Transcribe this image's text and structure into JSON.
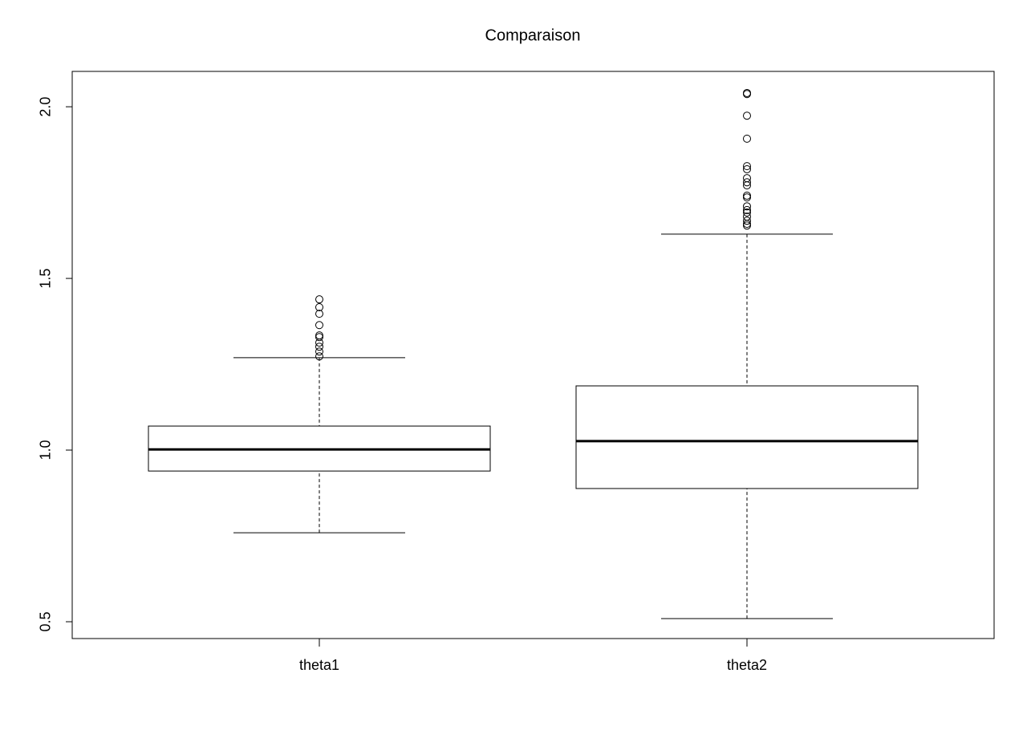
{
  "chart_data": {
    "type": "box",
    "title": "Comparaison",
    "categories": [
      "theta1",
      "theta2"
    ],
    "boxes": [
      {
        "whislo": 0.759,
        "q1": 0.939,
        "med": 1.002,
        "q3": 1.07,
        "whishi": 1.269,
        "fliers": [
          1.439,
          1.416,
          1.397,
          1.364,
          1.334,
          1.329,
          1.313,
          1.301,
          1.287,
          1.273
        ]
      },
      {
        "whislo": 0.509,
        "q1": 0.888,
        "med": 1.026,
        "q3": 1.187,
        "whishi": 1.629,
        "fliers": [
          2.04,
          2.037,
          1.974,
          1.907,
          1.827,
          1.818,
          1.792,
          1.78,
          1.771,
          1.741,
          1.736,
          1.71,
          1.699,
          1.692,
          1.68,
          1.668,
          1.659,
          1.654
        ]
      }
    ],
    "color": "#000000",
    "ylim": [
      0.451,
      2.103
    ],
    "yticks": [
      0.5,
      {
        "value": 1,
        "label": "1.0"
      },
      1.5,
      {
        "value": 2,
        "label": "2.0"
      }
    ]
  }
}
